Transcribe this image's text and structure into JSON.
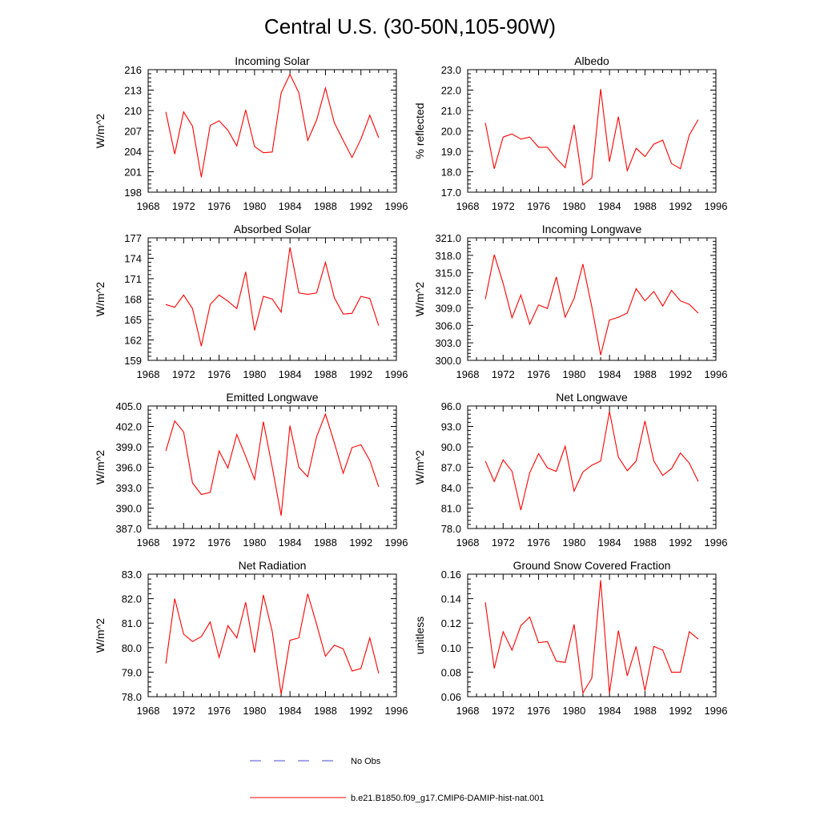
{
  "figure": {
    "title": "Central U.S. (30-50N,105-90W)",
    "line_color": "#ff0000",
    "obs_color": "#4a4ac8"
  },
  "legend": {
    "obs_label": "No Obs",
    "model_label": "b.e21.B1850.f09_g17.CMIP6-DAMIP-hist-nat.001"
  },
  "chart_data": [
    {
      "type": "line",
      "title": "Incoming Solar",
      "ylabel": "W/m^2",
      "xlim": [
        1968,
        1996
      ],
      "xticks": [
        "1968",
        "1972",
        "1976",
        "1980",
        "1984",
        "1988",
        "1992",
        "1996"
      ],
      "ylim": [
        198,
        216
      ],
      "yticks": [
        "216",
        "213",
        "210",
        "207",
        "204",
        "201",
        "198"
      ],
      "series": [
        {
          "x": [
            1970,
            1971,
            1972,
            1973,
            1974,
            1975,
            1976,
            1977,
            1978,
            1979,
            1980,
            1981,
            1982,
            1983,
            1984,
            1985,
            1986,
            1987,
            1988,
            1989,
            1990,
            1991,
            1992,
            1993,
            1994
          ],
          "values": [
            209.8,
            203.6,
            209.8,
            207.7,
            200.2,
            207.8,
            208.5,
            207.1,
            204.8,
            210.1,
            204.7,
            203.8,
            203.9,
            212.6,
            215.3,
            212.6,
            205.6,
            208.6,
            213.3,
            208.2,
            205.6,
            203.1,
            205.8,
            209.3,
            206
          ]
        }
      ]
    },
    {
      "type": "line",
      "title": "Albedo",
      "ylabel": "% reflected",
      "xlim": [
        1968,
        1996
      ],
      "xticks": [
        "1968",
        "1972",
        "1976",
        "1980",
        "1984",
        "1988",
        "1992",
        "1996"
      ],
      "ylim": [
        17,
        23
      ],
      "yticks": [
        "23.0",
        "22.0",
        "21.0",
        "20.0",
        "19.0",
        "18.0",
        "17.0"
      ],
      "series": [
        {
          "x": [
            1970,
            1971,
            1972,
            1973,
            1974,
            1975,
            1976,
            1977,
            1978,
            1979,
            1980,
            1981,
            1982,
            1983,
            1984,
            1985,
            1986,
            1987,
            1988,
            1989,
            1990,
            1991,
            1992,
            1993,
            1994
          ],
          "values": [
            20.4,
            18.15,
            19.7,
            19.85,
            19.6,
            19.7,
            19.2,
            19.2,
            18.65,
            18.2,
            20.3,
            17.35,
            17.7,
            22.05,
            18.5,
            20.7,
            18.05,
            19.15,
            18.75,
            19.35,
            19.55,
            18.4,
            18.15,
            19.8,
            20.55
          ]
        }
      ]
    },
    {
      "type": "line",
      "title": "Absorbed Solar",
      "ylabel": "W/m^2",
      "xlim": [
        1968,
        1996
      ],
      "xticks": [
        "1968",
        "1972",
        "1976",
        "1980",
        "1984",
        "1988",
        "1992",
        "1996"
      ],
      "ylim": [
        159,
        177
      ],
      "yticks": [
        "177",
        "174",
        "171",
        "168",
        "165",
        "162",
        "159"
      ],
      "series": [
        {
          "x": [
            1970,
            1971,
            1972,
            1973,
            1974,
            1975,
            1976,
            1977,
            1978,
            1979,
            1980,
            1981,
            1982,
            1983,
            1984,
            1985,
            1986,
            1987,
            1988,
            1989,
            1990,
            1991,
            1992,
            1993,
            1994
          ],
          "values": [
            167.2,
            166.8,
            168.6,
            166.6,
            161.1,
            167.2,
            168.6,
            167.7,
            166.6,
            172.0,
            163.4,
            168.4,
            168.0,
            166.1,
            175.6,
            168.9,
            168.7,
            168.9,
            173.4,
            168.2,
            165.8,
            165.9,
            168.4,
            168.1,
            164.1
          ]
        }
      ]
    },
    {
      "type": "line",
      "title": "Incoming Longwave",
      "ylabel": "W/m^2",
      "xlim": [
        1968,
        1996
      ],
      "xticks": [
        "1968",
        "1972",
        "1976",
        "1980",
        "1984",
        "1988",
        "1992",
        "1996"
      ],
      "ylim": [
        300,
        321
      ],
      "yticks": [
        "321.0",
        "318.0",
        "315.0",
        "312.0",
        "309.0",
        "306.0",
        "303.0",
        "300.0"
      ],
      "series": [
        {
          "x": [
            1970,
            1971,
            1972,
            1973,
            1974,
            1975,
            1976,
            1977,
            1978,
            1979,
            1980,
            1981,
            1982,
            1983,
            1984,
            1985,
            1986,
            1987,
            1988,
            1989,
            1990,
            1991,
            1992,
            1993,
            1994
          ],
          "values": [
            310.5,
            318.1,
            313.2,
            307.3,
            311.2,
            306.2,
            309.5,
            308.9,
            314.3,
            307.4,
            310.6,
            316.5,
            309.2,
            300.9,
            306.9,
            307.4,
            308.1,
            312.3,
            310.2,
            311.8,
            309.3,
            312.0,
            310.2,
            309.6,
            308.1
          ]
        }
      ]
    },
    {
      "type": "line",
      "title": "Emitted Longwave",
      "ylabel": "W/m^2",
      "xlim": [
        1968,
        1996
      ],
      "xticks": [
        "1968",
        "1972",
        "1976",
        "1980",
        "1984",
        "1988",
        "1992",
        "1996"
      ],
      "ylim": [
        387,
        405
      ],
      "yticks": [
        "405.0",
        "402.0",
        "399.0",
        "396.0",
        "393.0",
        "390.0",
        "387.0"
      ],
      "series": [
        {
          "x": [
            1970,
            1971,
            1972,
            1973,
            1974,
            1975,
            1976,
            1977,
            1978,
            1979,
            1980,
            1981,
            1982,
            1983,
            1984,
            1985,
            1986,
            1987,
            1988,
            1989,
            1990,
            1991,
            1992,
            1993,
            1994
          ],
          "values": [
            398.4,
            402.8,
            401.2,
            393.7,
            392.0,
            392.3,
            398.4,
            395.9,
            400.8,
            397.6,
            394.2,
            402.7,
            396.0,
            388.9,
            402.1,
            396.0,
            394.6,
            400.5,
            403.8,
            399.6,
            395.1,
            398.9,
            399.3,
            397.0,
            393.1
          ]
        }
      ]
    },
    {
      "type": "line",
      "title": "Net Longwave",
      "ylabel": "W/m^2",
      "xlim": [
        1968,
        1996
      ],
      "xticks": [
        "1968",
        "1972",
        "1976",
        "1980",
        "1984",
        "1988",
        "1992",
        "1996"
      ],
      "ylim": [
        78,
        96
      ],
      "yticks": [
        "96.0",
        "93.0",
        "90.0",
        "87.0",
        "84.0",
        "81.0",
        "78.0"
      ],
      "series": [
        {
          "x": [
            1970,
            1971,
            1972,
            1973,
            1974,
            1975,
            1976,
            1977,
            1978,
            1979,
            1980,
            1981,
            1982,
            1983,
            1984,
            1985,
            1986,
            1987,
            1988,
            1989,
            1990,
            1991,
            1992,
            1993,
            1994
          ],
          "values": [
            87.9,
            84.9,
            88.1,
            86.4,
            80.7,
            86.2,
            89.0,
            86.9,
            86.4,
            90.1,
            83.5,
            86.3,
            87.3,
            87.9,
            95.2,
            88.5,
            86.5,
            87.9,
            93.8,
            87.9,
            85.8,
            86.8,
            89.1,
            87.6,
            84.9
          ]
        }
      ]
    },
    {
      "type": "line",
      "title": "Net Radiation",
      "ylabel": "W/m^2",
      "xlim": [
        1968,
        1996
      ],
      "xticks": [
        "1968",
        "1972",
        "1976",
        "1980",
        "1984",
        "1988",
        "1992",
        "1996"
      ],
      "ylim": [
        78,
        83
      ],
      "yticks": [
        "83.0",
        "82.0",
        "81.0",
        "80.0",
        "79.0",
        "78.0"
      ],
      "series": [
        {
          "x": [
            1970,
            1971,
            1972,
            1973,
            1974,
            1975,
            1976,
            1977,
            1978,
            1979,
            1980,
            1981,
            1982,
            1983,
            1984,
            1985,
            1986,
            1987,
            1988,
            1989,
            1990,
            1991,
            1992,
            1993,
            1994
          ],
          "values": [
            79.35,
            82.0,
            80.55,
            80.25,
            80.45,
            81.05,
            79.6,
            80.9,
            80.4,
            81.85,
            79.8,
            82.15,
            80.65,
            78.1,
            80.3,
            80.4,
            82.2,
            80.95,
            79.65,
            80.1,
            79.95,
            79.05,
            79.15,
            80.4,
            78.95
          ]
        }
      ]
    },
    {
      "type": "line",
      "title": "Ground Snow Covered Fraction",
      "ylabel": "unitless",
      "xlim": [
        1968,
        1996
      ],
      "xticks": [
        "1968",
        "1972",
        "1976",
        "1980",
        "1984",
        "1988",
        "1992",
        "1996"
      ],
      "ylim": [
        0.06,
        0.16
      ],
      "yticks": [
        "0.16",
        "0.14",
        "0.12",
        "0.10",
        "0.08",
        "0.06"
      ],
      "series": [
        {
          "x": [
            1970,
            1971,
            1972,
            1973,
            1974,
            1975,
            1976,
            1977,
            1978,
            1979,
            1980,
            1981,
            1982,
            1983,
            1984,
            1985,
            1986,
            1987,
            1988,
            1989,
            1990,
            1991,
            1992,
            1993,
            1994
          ],
          "values": [
            0.137,
            0.083,
            0.113,
            0.098,
            0.118,
            0.125,
            0.104,
            0.105,
            0.089,
            0.088,
            0.119,
            0.063,
            0.075,
            0.155,
            0.063,
            0.114,
            0.077,
            0.101,
            0.065,
            0.101,
            0.098,
            0.08,
            0.08,
            0.113,
            0.107
          ]
        }
      ]
    }
  ]
}
